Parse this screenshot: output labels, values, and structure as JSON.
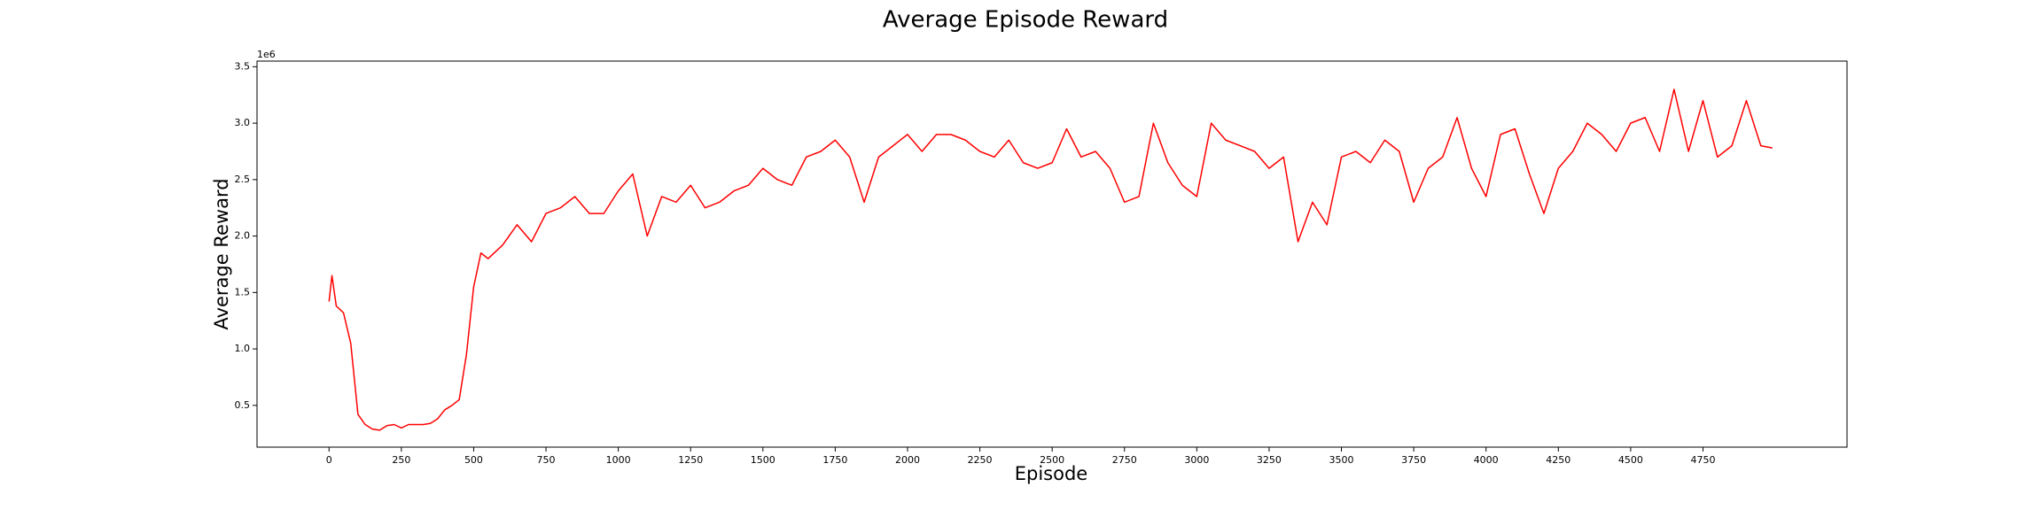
{
  "chart_data": {
    "type": "line",
    "title": "Average Episode Reward",
    "x_label": "Episode",
    "y_label": "Average Reward",
    "y_offset_label": "1e6",
    "xlim": [
      -249,
      5248
    ],
    "ylim": [
      0.13,
      3.55
    ],
    "xticks": [
      0,
      250,
      500,
      750,
      1000,
      1250,
      1500,
      1750,
      2000,
      2250,
      2500,
      2750,
      3000,
      3250,
      3500,
      3750,
      4000,
      4250,
      4500,
      4750
    ],
    "yticks": [
      0.5,
      {
        "value": 1,
        "label": "1.0"
      },
      1.5,
      {
        "value": 2,
        "label": "2.0"
      },
      2.5,
      {
        "value": 3,
        "label": "3.0"
      },
      3.5
    ],
    "grid": false,
    "x": [
      0,
      10,
      25,
      50,
      75,
      100,
      125,
      150,
      175,
      200,
      225,
      250,
      275,
      300,
      325,
      350,
      375,
      400,
      425,
      450,
      475,
      500,
      525,
      550,
      600,
      650,
      700,
      750,
      800,
      850,
      900,
      950,
      1000,
      1050,
      1100,
      1150,
      1200,
      1250,
      1300,
      1350,
      1400,
      1450,
      1500,
      1550,
      1600,
      1650,
      1700,
      1750,
      1800,
      1850,
      1900,
      1950,
      2000,
      2050,
      2100,
      2150,
      2200,
      2250,
      2300,
      2350,
      2400,
      2450,
      2500,
      2550,
      2600,
      2650,
      2700,
      2750,
      2800,
      2850,
      2900,
      2950,
      3000,
      3050,
      3100,
      3150,
      3200,
      3250,
      3300,
      3350,
      3400,
      3450,
      3500,
      3550,
      3600,
      3650,
      3700,
      3750,
      3800,
      3850,
      3900,
      3950,
      4000,
      4050,
      4100,
      4150,
      4200,
      4250,
      4300,
      4350,
      4400,
      4450,
      4500,
      4550,
      4600,
      4650,
      4700,
      4750,
      4800,
      4850,
      4900,
      4950,
      4990
    ],
    "series": [
      {
        "name": "Average Reward",
        "color": "#ff0000",
        "values": [
          1.42,
          1.65,
          1.38,
          1.32,
          1.05,
          0.42,
          0.33,
          0.29,
          0.28,
          0.32,
          0.33,
          0.3,
          0.33,
          0.33,
          0.33,
          0.34,
          0.38,
          0.46,
          0.5,
          0.55,
          0.95,
          1.55,
          1.85,
          1.8,
          1.92,
          2.1,
          1.95,
          2.2,
          2.25,
          2.35,
          2.2,
          2.2,
          2.4,
          2.55,
          2.0,
          2.35,
          2.3,
          2.45,
          2.25,
          2.3,
          2.4,
          2.45,
          2.6,
          2.5,
          2.45,
          2.7,
          2.75,
          2.85,
          2.7,
          2.3,
          2.7,
          2.8,
          2.9,
          2.75,
          2.9,
          2.9,
          2.85,
          2.75,
          2.7,
          2.85,
          2.65,
          2.6,
          2.65,
          2.95,
          2.7,
          2.75,
          2.6,
          2.3,
          2.35,
          3.0,
          2.65,
          2.45,
          2.35,
          3.0,
          2.85,
          2.8,
          2.75,
          2.6,
          2.7,
          1.95,
          2.3,
          2.1,
          2.7,
          2.75,
          2.65,
          2.85,
          2.75,
          2.3,
          2.6,
          2.7,
          3.05,
          2.6,
          2.35,
          2.9,
          2.95,
          2.55,
          2.2,
          2.6,
          2.75,
          3.0,
          2.9,
          2.75,
          3.0,
          3.05,
          2.75,
          3.3,
          2.75,
          3.2,
          2.7,
          2.8,
          3.2,
          2.8,
          2.78
        ]
      }
    ]
  }
}
